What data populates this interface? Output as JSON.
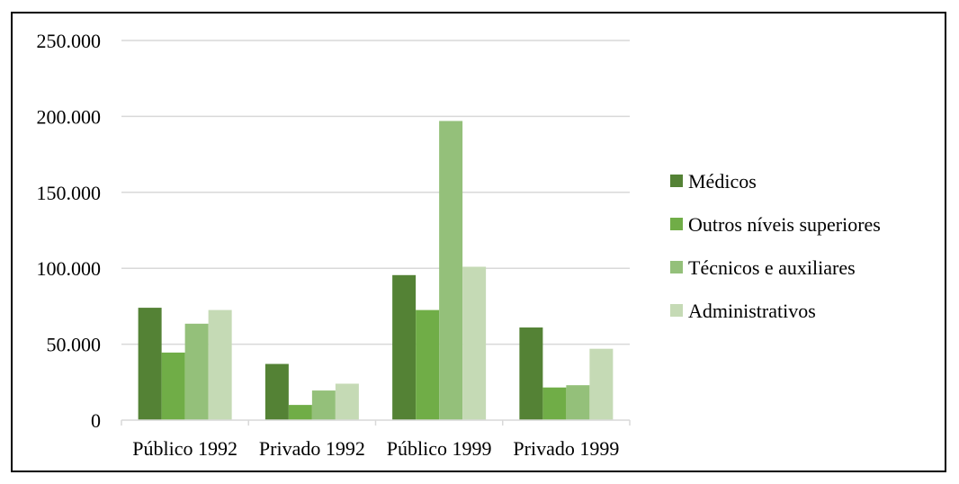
{
  "chart_data": {
    "type": "bar",
    "title": "",
    "xlabel": "",
    "ylabel": "",
    "categories": [
      "Público 1992",
      "Privado 1992",
      "Público 1999",
      "Privado 1999"
    ],
    "series": [
      {
        "name": "Médicos",
        "color": "#548235",
        "values": [
          74000,
          37000,
          95500,
          61000
        ]
      },
      {
        "name": "Outros níveis superiores",
        "color": "#70ad47",
        "values": [
          44500,
          10000,
          72500,
          21500
        ]
      },
      {
        "name": "Técnicos e auxiliares",
        "color": "#94c07a",
        "values": [
          63500,
          19500,
          197000,
          23000
        ]
      },
      {
        "name": "Administrativos",
        "color": "#c5dab5",
        "values": [
          72500,
          24000,
          101000,
          47000
        ]
      }
    ],
    "ylim": [
      0,
      250000
    ],
    "yticks": [
      0,
      50000,
      100000,
      150000,
      200000,
      250000
    ],
    "ytick_labels": [
      "0",
      "50.000",
      "100.000",
      "150.000",
      "200.000",
      "250.000"
    ],
    "grid": true,
    "gridline_color": "#d9d9d9",
    "legend_position": "right"
  }
}
